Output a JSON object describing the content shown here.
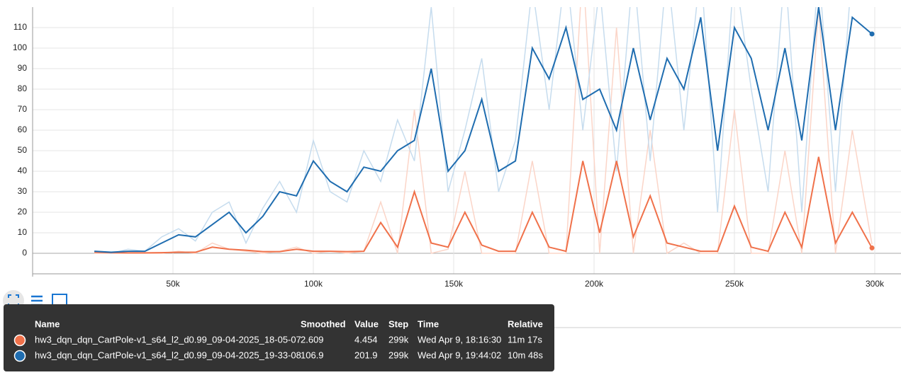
{
  "chart_data": {
    "type": "line",
    "x": [
      22000,
      28000,
      34000,
      40000,
      46000,
      52000,
      58000,
      64000,
      70000,
      76000,
      82000,
      88000,
      94000,
      100000,
      106000,
      112000,
      118000,
      124000,
      130000,
      136000,
      142000,
      148000,
      154000,
      160000,
      166000,
      172000,
      178000,
      184000,
      190000,
      196000,
      202000,
      208000,
      214000,
      220000,
      226000,
      232000,
      238000,
      244000,
      250000,
      256000,
      262000,
      268000,
      274000,
      280000,
      286000,
      292000,
      299000
    ],
    "series": [
      {
        "name": "hw3_dqn_dqn_CartPole-v1_s64_l2_d0.99_09-04-2025_18-05-07",
        "color": "#f0714a",
        "raw_color": "#fbd5c8",
        "values": [
          0.5,
          0.3,
          0.2,
          0.2,
          0.3,
          0.5,
          0.5,
          3,
          2,
          1.5,
          0.8,
          0.8,
          2,
          1,
          1,
          0.8,
          1,
          15,
          3,
          30,
          5,
          3,
          20,
          4,
          1,
          1,
          20,
          3,
          1,
          45,
          10,
          45,
          8,
          28,
          5,
          3,
          1,
          1,
          23,
          3,
          1,
          20,
          3,
          47,
          5,
          20,
          2.609
        ],
        "raw": [
          0,
          0,
          0,
          0,
          0,
          1,
          0,
          5,
          2,
          1,
          0,
          1,
          3,
          0,
          1,
          0,
          1,
          25,
          0,
          70,
          0,
          2,
          40,
          0,
          0,
          0,
          45,
          0,
          0,
          140,
          0,
          110,
          0,
          60,
          0,
          5,
          0,
          0,
          70,
          0,
          0,
          50,
          0,
          120,
          0,
          60,
          4.454
        ]
      },
      {
        "name": "hw3_dqn_dqn_CartPole-v1_s64_l2_d0.99_09-04-2025_19-33-08",
        "color": "#1f6db0",
        "raw_color": "#c6dcee",
        "values": [
          1,
          0.5,
          1,
          1,
          5,
          9,
          8,
          14,
          20,
          10,
          18,
          30,
          28,
          45,
          35,
          30,
          42,
          40,
          50,
          55,
          90,
          40,
          50,
          75,
          40,
          45,
          100,
          85,
          110,
          75,
          80,
          60,
          100,
          65,
          95,
          80,
          115,
          50,
          110,
          95,
          60,
          100,
          55,
          120,
          60,
          115,
          106.9
        ],
        "raw": [
          1,
          0,
          2,
          1,
          8,
          12,
          6,
          20,
          25,
          5,
          22,
          35,
          20,
          55,
          30,
          25,
          50,
          35,
          65,
          45,
          120,
          30,
          60,
          95,
          30,
          55,
          130,
          70,
          140,
          60,
          130,
          40,
          140,
          45,
          140,
          60,
          140,
          20,
          140,
          80,
          30,
          140,
          20,
          140,
          30,
          140,
          201.9
        ]
      }
    ],
    "xlim": [
      0,
      310000
    ],
    "xticks": [
      {
        "value": 50000,
        "label": "50k"
      },
      {
        "value": 100000,
        "label": "100k"
      },
      {
        "value": 150000,
        "label": "150k"
      },
      {
        "value": 200000,
        "label": "200k"
      },
      {
        "value": 250000,
        "label": "250k"
      },
      {
        "value": 300000,
        "label": "300k"
      }
    ],
    "ylim": [
      -10,
      120
    ],
    "yticks": [
      0,
      10,
      20,
      30,
      40,
      50,
      60,
      70,
      80,
      90,
      100,
      110
    ],
    "grid": true
  },
  "tooltip": {
    "columns": [
      "Name",
      "Smoothed",
      "Value",
      "Step",
      "Time",
      "Relative"
    ],
    "rows": [
      [
        "2.609",
        "4.454",
        "299k",
        "Wed Apr 9, 18:16:30",
        "11m 17s"
      ],
      [
        "106.9",
        "201.9",
        "299k",
        "Wed Apr 9, 19:44:02",
        "10m 48s"
      ]
    ]
  }
}
